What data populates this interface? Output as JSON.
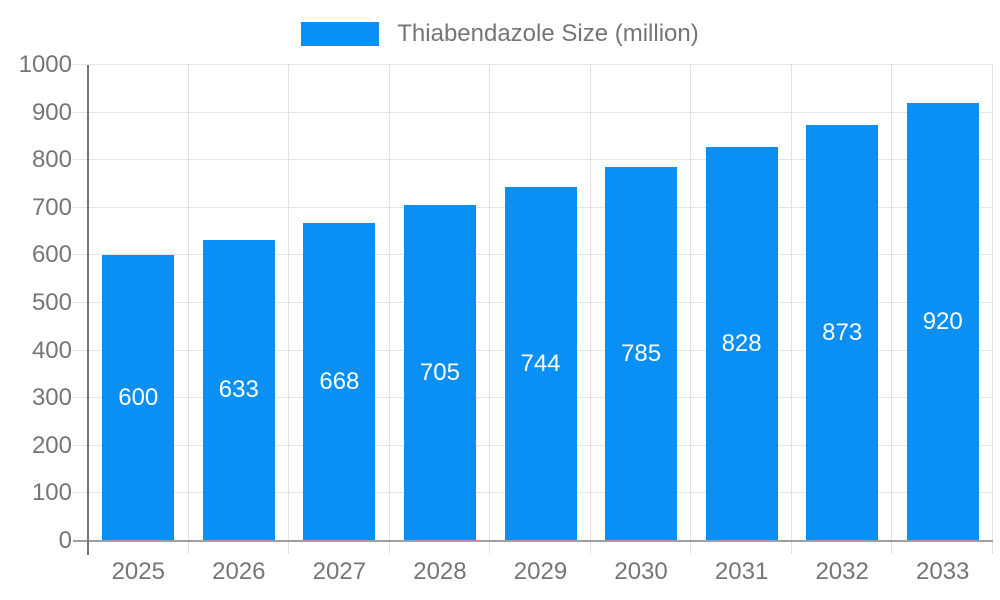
{
  "legend": {
    "label": "Thiabendazole Size (million)"
  },
  "chart_data": {
    "type": "bar",
    "title": "",
    "xlabel": "",
    "ylabel": "",
    "categories": [
      "2025",
      "2026",
      "2027",
      "2028",
      "2029",
      "2030",
      "2031",
      "2032",
      "2033"
    ],
    "values": [
      600,
      633,
      668,
      705,
      744,
      785,
      828,
      873,
      920
    ],
    "series_name": "Thiabendazole Size (million)",
    "ylim": [
      0,
      1000
    ],
    "yticks": [
      0,
      100,
      200,
      300,
      400,
      500,
      600,
      700,
      800,
      900,
      1000
    ],
    "grid": true,
    "legend_position": "top-center",
    "bar_color": "#0a8ff5",
    "value_label_color": "#ffffff",
    "axis_text_color": "#757575",
    "gridline_color": "#e4e4e4",
    "axis_line_color": "#757575"
  }
}
